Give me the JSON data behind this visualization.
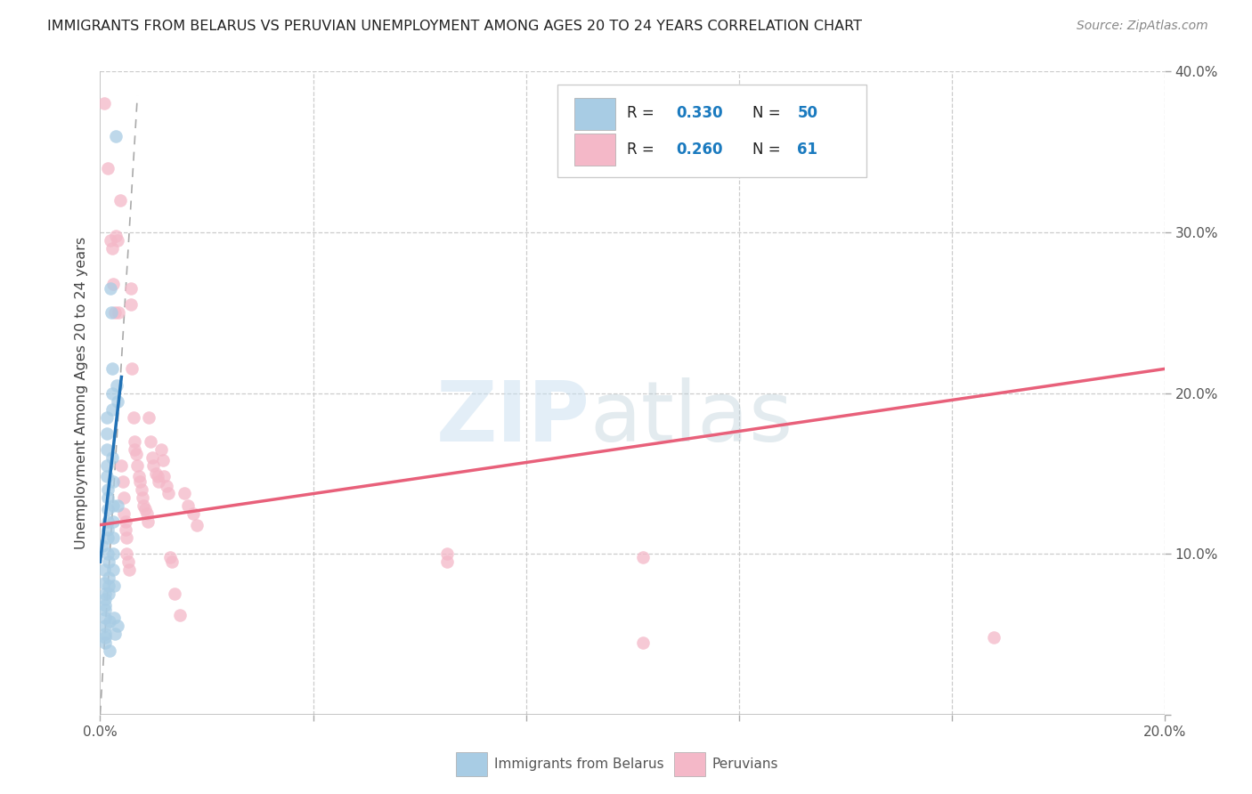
{
  "title": "IMMIGRANTS FROM BELARUS VS PERUVIAN UNEMPLOYMENT AMONG AGES 20 TO 24 YEARS CORRELATION CHART",
  "source": "Source: ZipAtlas.com",
  "ylabel": "Unemployment Among Ages 20 to 24 years",
  "x_min": 0.0,
  "x_max": 0.2,
  "y_min": 0.0,
  "y_max": 0.4,
  "color_blue": "#a8cce4",
  "color_pink": "#f4b8c8",
  "color_blue_line": "#2171b5",
  "color_pink_line": "#e8607a",
  "belarus_points": [
    [
      0.0005,
      0.105
    ],
    [
      0.0008,
      0.09
    ],
    [
      0.0008,
      0.082
    ],
    [
      0.0009,
      0.075
    ],
    [
      0.0009,
      0.072
    ],
    [
      0.001,
      0.068
    ],
    [
      0.001,
      0.065
    ],
    [
      0.001,
      0.06
    ],
    [
      0.001,
      0.055
    ],
    [
      0.001,
      0.05
    ],
    [
      0.001,
      0.048
    ],
    [
      0.001,
      0.045
    ],
    [
      0.0012,
      0.185
    ],
    [
      0.0012,
      0.175
    ],
    [
      0.0013,
      0.165
    ],
    [
      0.0013,
      0.155
    ],
    [
      0.0013,
      0.148
    ],
    [
      0.0014,
      0.14
    ],
    [
      0.0014,
      0.135
    ],
    [
      0.0014,
      0.128
    ],
    [
      0.0015,
      0.12
    ],
    [
      0.0015,
      0.115
    ],
    [
      0.0015,
      0.11
    ],
    [
      0.0015,
      0.1
    ],
    [
      0.0016,
      0.095
    ],
    [
      0.0016,
      0.085
    ],
    [
      0.0016,
      0.08
    ],
    [
      0.0016,
      0.075
    ],
    [
      0.0017,
      0.058
    ],
    [
      0.0017,
      0.04
    ],
    [
      0.002,
      0.265
    ],
    [
      0.0021,
      0.25
    ],
    [
      0.0022,
      0.215
    ],
    [
      0.0022,
      0.2
    ],
    [
      0.0023,
      0.19
    ],
    [
      0.0023,
      0.16
    ],
    [
      0.0024,
      0.145
    ],
    [
      0.0024,
      0.13
    ],
    [
      0.0025,
      0.12
    ],
    [
      0.0025,
      0.11
    ],
    [
      0.0025,
      0.1
    ],
    [
      0.0025,
      0.09
    ],
    [
      0.0026,
      0.08
    ],
    [
      0.0026,
      0.06
    ],
    [
      0.0027,
      0.05
    ],
    [
      0.003,
      0.36
    ],
    [
      0.0031,
      0.205
    ],
    [
      0.0032,
      0.195
    ],
    [
      0.0033,
      0.13
    ],
    [
      0.0033,
      0.055
    ]
  ],
  "peru_points": [
    [
      0.0008,
      0.38
    ],
    [
      0.0015,
      0.34
    ],
    [
      0.002,
      0.295
    ],
    [
      0.0022,
      0.29
    ],
    [
      0.0025,
      0.268
    ],
    [
      0.0028,
      0.25
    ],
    [
      0.003,
      0.298
    ],
    [
      0.0032,
      0.295
    ],
    [
      0.0035,
      0.25
    ],
    [
      0.0038,
      0.32
    ],
    [
      0.004,
      0.155
    ],
    [
      0.0042,
      0.145
    ],
    [
      0.0045,
      0.135
    ],
    [
      0.0045,
      0.125
    ],
    [
      0.0048,
      0.12
    ],
    [
      0.0048,
      0.115
    ],
    [
      0.005,
      0.11
    ],
    [
      0.005,
      0.1
    ],
    [
      0.0052,
      0.095
    ],
    [
      0.0055,
      0.09
    ],
    [
      0.0058,
      0.265
    ],
    [
      0.0058,
      0.255
    ],
    [
      0.006,
      0.215
    ],
    [
      0.0062,
      0.185
    ],
    [
      0.0065,
      0.17
    ],
    [
      0.0065,
      0.165
    ],
    [
      0.0068,
      0.162
    ],
    [
      0.007,
      0.155
    ],
    [
      0.0072,
      0.148
    ],
    [
      0.0075,
      0.145
    ],
    [
      0.0078,
      0.14
    ],
    [
      0.008,
      0.135
    ],
    [
      0.0082,
      0.13
    ],
    [
      0.0085,
      0.128
    ],
    [
      0.0088,
      0.125
    ],
    [
      0.009,
      0.12
    ],
    [
      0.0092,
      0.185
    ],
    [
      0.0095,
      0.17
    ],
    [
      0.0098,
      0.16
    ],
    [
      0.01,
      0.155
    ],
    [
      0.0105,
      0.15
    ],
    [
      0.0108,
      0.148
    ],
    [
      0.011,
      0.145
    ],
    [
      0.0115,
      0.165
    ],
    [
      0.0118,
      0.158
    ],
    [
      0.012,
      0.148
    ],
    [
      0.0125,
      0.142
    ],
    [
      0.0128,
      0.138
    ],
    [
      0.0132,
      0.098
    ],
    [
      0.0135,
      0.095
    ],
    [
      0.014,
      0.075
    ],
    [
      0.015,
      0.062
    ],
    [
      0.0158,
      0.138
    ],
    [
      0.0165,
      0.13
    ],
    [
      0.0175,
      0.125
    ],
    [
      0.0182,
      0.118
    ],
    [
      0.0652,
      0.1
    ],
    [
      0.0652,
      0.095
    ],
    [
      0.102,
      0.098
    ],
    [
      0.168,
      0.048
    ],
    [
      0.102,
      0.045
    ]
  ],
  "belarus_trend_x": [
    0.0,
    0.004
  ],
  "belarus_trend_y": [
    0.095,
    0.21
  ],
  "peru_trend_x": [
    0.0,
    0.2
  ],
  "peru_trend_y": [
    0.118,
    0.215
  ],
  "diag_line_x": [
    0.0,
    0.007
  ],
  "diag_line_y": [
    0.0,
    0.385
  ]
}
